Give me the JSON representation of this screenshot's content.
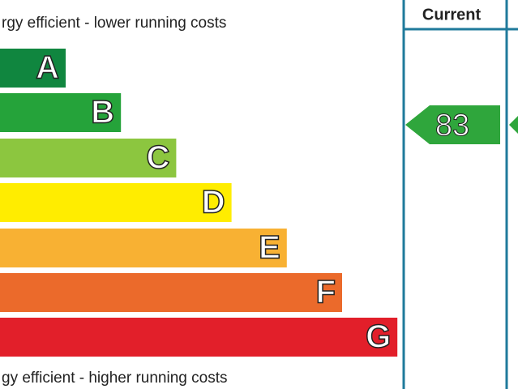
{
  "header": {
    "top_text": "rgy efficient - lower running costs",
    "bottom_text": "gy efficient - higher running costs",
    "current_label": "Current"
  },
  "bands": [
    {
      "letter": "A",
      "color": "#10863f"
    },
    {
      "letter": "B",
      "color": "#25a33a"
    },
    {
      "letter": "C",
      "color": "#8cc63f"
    },
    {
      "letter": "D",
      "color": "#ffed00"
    },
    {
      "letter": "E",
      "color": "#f8b133"
    },
    {
      "letter": "F",
      "color": "#eb6a2b"
    },
    {
      "letter": "G",
      "color": "#e21f2a"
    }
  ],
  "current": {
    "value": "83",
    "color": "#2fa63c"
  }
}
